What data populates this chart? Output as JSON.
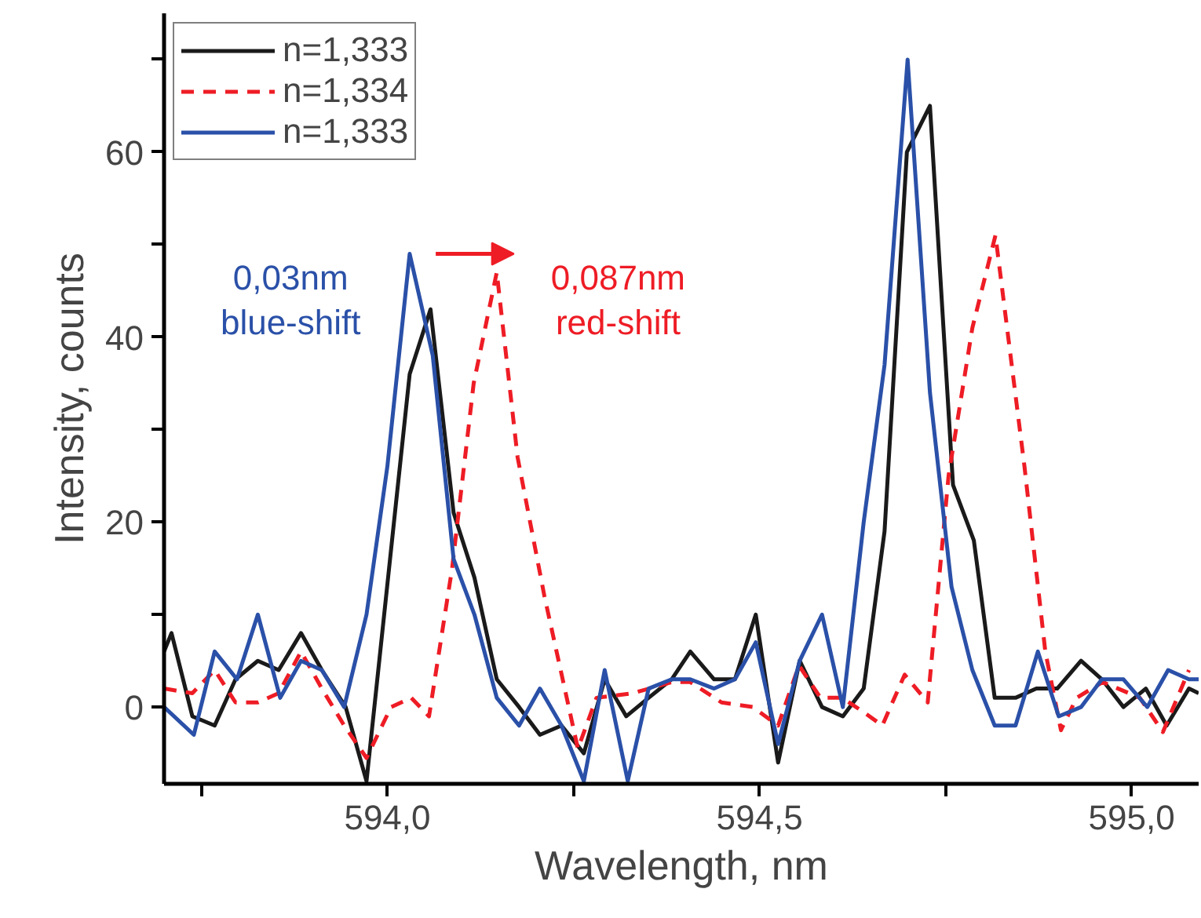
{
  "chart_data": {
    "type": "line",
    "xlabel": "Wavelength, nm",
    "ylabel": "Intensity, counts",
    "xlim": [
      593.7,
      595.09
    ],
    "ylim": [
      -8.3,
      75
    ],
    "xticks": [
      {
        "value": 593.75,
        "label": null
      },
      {
        "value": 594.0,
        "label": "594,0"
      },
      {
        "value": 594.25,
        "label": null
      },
      {
        "value": 594.5,
        "label": "594,5"
      },
      {
        "value": 594.75,
        "label": null
      },
      {
        "value": 595.0,
        "label": "595,0"
      }
    ],
    "yticks": [
      0,
      {
        "value": 10,
        "label": null
      },
      20,
      {
        "value": 30,
        "label": null
      },
      40,
      {
        "value": 50,
        "label": null
      },
      60,
      {
        "value": 70,
        "label": null
      }
    ],
    "grid": false,
    "legend": "top left",
    "marker": "none",
    "annotations": [
      "0,03nm\nblue-shift",
      "0,087nm\nred-shift"
    ],
    "series": [
      {
        "name": "n=1,333",
        "color": "#1a1a1a",
        "line_style": "solid",
        "x": [
          593.7,
          593.71,
          593.738,
          593.768,
          593.796,
          593.826,
          593.854,
          593.884,
          593.912,
          593.944,
          593.972,
          594.03,
          594.058,
          594.089,
          594.117,
          594.147,
          594.177,
          594.205,
          594.234,
          594.264,
          594.292,
          594.321,
          594.351,
          594.382,
          594.407,
          594.439,
          594.467,
          594.495,
          594.525,
          594.554,
          594.584,
          594.612,
          594.64,
          594.668,
          594.698,
          594.729,
          594.76,
          594.788,
          594.816,
          594.844,
          594.872,
          594.9,
          594.932,
          594.96,
          594.989,
          595.019,
          595.047,
          595.077,
          595.09
        ],
        "values": [
          6,
          8,
          -1,
          -2,
          3,
          5,
          4,
          8,
          4,
          0,
          -8,
          36,
          43,
          21,
          14,
          3,
          0,
          -3,
          -2,
          -5,
          3,
          -1,
          1,
          3,
          6,
          3,
          3,
          10,
          -6,
          5,
          0,
          -1,
          2,
          19,
          60,
          65,
          24,
          18,
          1,
          1,
          2,
          2,
          5,
          3,
          0,
          2,
          -2,
          2,
          1.5
        ]
      },
      {
        "name": "n=1,334",
        "color": "#ee1c25",
        "line_style": "dashed",
        "x": [
          593.7,
          593.738,
          593.768,
          593.796,
          593.826,
          593.854,
          593.884,
          593.912,
          593.942,
          593.972,
          594.005,
          594.032,
          594.056,
          594.087,
          594.116,
          594.147,
          594.175,
          594.211,
          594.256,
          594.281,
          594.33,
          594.382,
          594.407,
          594.449,
          594.491,
          594.525,
          594.553,
          594.582,
          594.611,
          594.639,
          594.665,
          594.695,
          594.726,
          594.754,
          594.786,
          594.817,
          594.856,
          594.884,
          594.905,
          594.926,
          594.961,
          595.011,
          595.042,
          595.077
        ],
        "values": [
          2,
          1.5,
          4,
          0.5,
          0.5,
          1.5,
          6,
          2,
          -2,
          -5.5,
          0,
          1,
          -1,
          15,
          35,
          47,
          27,
          12,
          -4.5,
          1,
          1.5,
          2.7,
          2.7,
          0.5,
          0,
          -2,
          4.5,
          1,
          1,
          -0.5,
          -2,
          3.5,
          0.5,
          25,
          41,
          51,
          26,
          6,
          -2.5,
          1,
          2.7,
          1,
          -2.7,
          4
        ]
      },
      {
        "name": "n=1,333",
        "color": "#2a50a8",
        "line_style": "solid",
        "x": [
          593.7,
          593.74,
          593.768,
          593.798,
          593.826,
          593.856,
          593.884,
          593.912,
          593.942,
          593.972,
          594.0,
          594.03,
          594.061,
          594.089,
          594.117,
          594.147,
          594.177,
          594.205,
          594.234,
          594.264,
          594.292,
          594.323,
          594.351,
          594.382,
          594.407,
          594.439,
          594.467,
          594.495,
          594.525,
          594.554,
          594.584,
          594.612,
          594.64,
          594.668,
          594.699,
          594.729,
          594.758,
          594.786,
          594.816,
          594.844,
          594.874,
          594.902,
          594.932,
          594.96,
          594.989,
          595.021,
          595.049,
          595.077,
          595.09
        ],
        "values": [
          0,
          -3,
          6,
          3,
          10,
          1,
          5,
          4,
          0,
          10,
          26,
          49,
          38,
          16,
          10,
          1,
          -2,
          2,
          -2,
          -8,
          4,
          -8,
          2,
          3,
          3,
          2,
          3,
          7,
          -4,
          5,
          10,
          0,
          20,
          37,
          70,
          34,
          13,
          4,
          -2,
          -2,
          6,
          -1,
          0,
          3,
          3,
          0,
          4,
          3,
          3
        ]
      }
    ]
  }
}
